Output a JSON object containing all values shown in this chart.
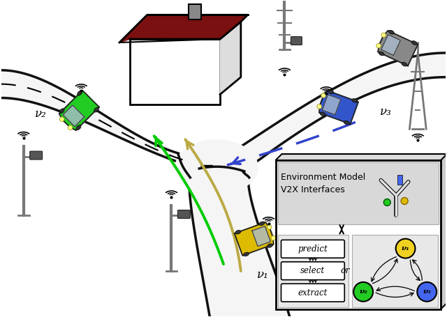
{
  "bg_color": "#ffffff",
  "road_color": "#000000",
  "road_fill": "#ffffff",
  "road_edge_lw": 3.5,
  "env_box_text": [
    "Environment Model",
    "V2X Interfaces"
  ],
  "predict_select_extract": [
    "predict",
    "select",
    "extract"
  ],
  "node_colors": {
    "v1": "#f0d020",
    "v2": "#22cc22",
    "v3": "#4466ee"
  },
  "node_labels": {
    "v1": "ν₁",
    "v2": "ν₂",
    "v3": "ν₃"
  },
  "label_v1": "ν₁",
  "label_v2": "ν₂",
  "label_v3": "ν₃",
  "arrow_green_color": "#00cc00",
  "arrow_yellow_color": "#bbaa44",
  "arrow_blue_color": "#3344cc",
  "gray_car_color": "#888888",
  "green_car_color": "#22cc22",
  "blue_car_color": "#3355cc",
  "yellow_car_color": "#ddbb00"
}
